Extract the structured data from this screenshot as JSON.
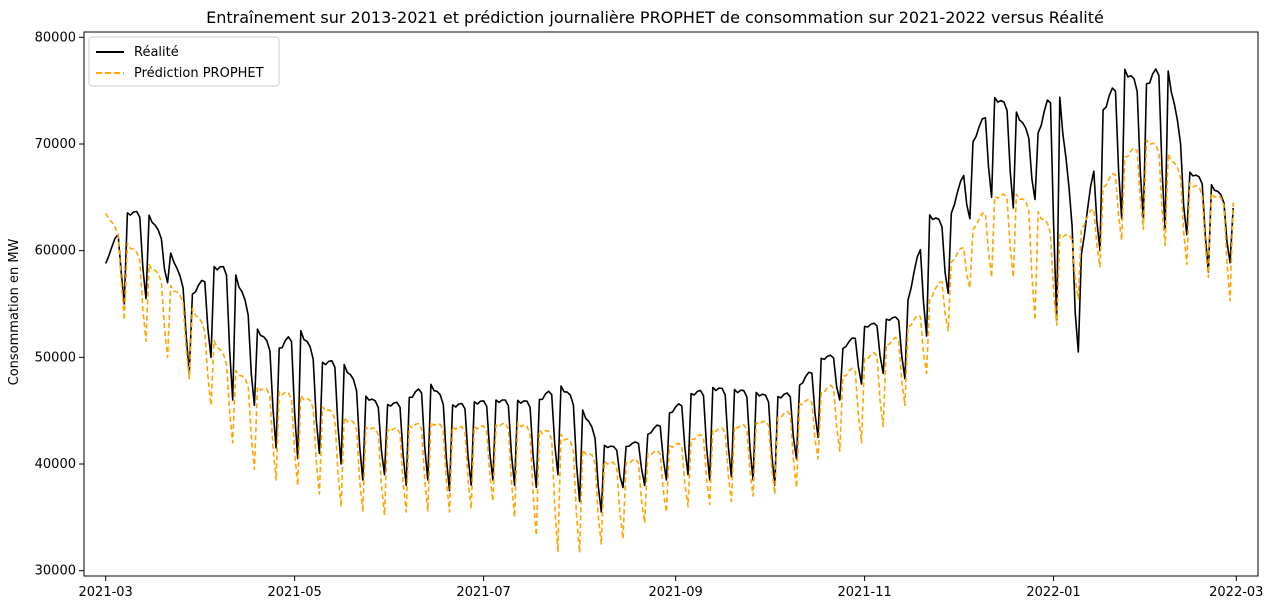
{
  "chart_data": {
    "type": "line",
    "title": "Entraînement sur 2013-2021 et prédiction journalière PROPHET de consommation sur 2021-2022 versus Réalité",
    "xlabel": "",
    "ylabel": "Consommation en MW",
    "x_ticks": [
      "2021-03",
      "2021-05",
      "2021-07",
      "2021-09",
      "2021-11",
      "2022-01",
      "2022-03"
    ],
    "y_ticks": [
      30000,
      40000,
      50000,
      60000,
      70000,
      80000
    ],
    "ylim": [
      29500,
      80500
    ],
    "xlim_days": [
      -7,
      372
    ],
    "x_tick_days": [
      0,
      61,
      122,
      184,
      245,
      306,
      365
    ],
    "legend_position": "top-left",
    "colors": {
      "realite": "#000000",
      "prediction": "#ffa500"
    },
    "series": [
      {
        "name": "Réalité",
        "style": "solid",
        "days": [
          0,
          6,
          13,
          20,
          27,
          34,
          41,
          48,
          55,
          62,
          69,
          76,
          83,
          90,
          97,
          104,
          111,
          118,
          125,
          132,
          139,
          146,
          153,
          160,
          167,
          174,
          181,
          188,
          195,
          202,
          209,
          216,
          223,
          230,
          237,
          244,
          251,
          258,
          265,
          272,
          279,
          286,
          293,
          300,
          307,
          314,
          321,
          328,
          335,
          342,
          349,
          356,
          364
        ],
        "weekday_values": [
          58800,
          63500,
          63800,
          60500,
          55500,
          58500,
          58500,
          53000,
          50500,
          53000,
          49500,
          49800,
          46500,
          45500,
          46000,
          47800,
          45500,
          45800,
          46000,
          46000,
          45800,
          47600,
          45600,
          41800,
          41500,
          42500,
          44500,
          46500,
          47200,
          47000,
          46800,
          46200,
          47000,
          49800,
          50500,
          52800,
          53500,
          54000,
          63500,
          62500,
          69500,
          74500,
          73500,
          70000,
          77200,
          57500,
          72500,
          77300,
          75200,
          78400,
          67500,
          66500,
          64000
        ],
        "weekend_values": [
          57500,
          55000,
          55500,
          57000,
          48500,
          50000,
          46000,
          45500,
          41500,
          40500,
          41000,
          40000,
          38500,
          39000,
          38000,
          38500,
          37500,
          38000,
          38500,
          38000,
          37800,
          39000,
          36500,
          35500,
          37800,
          38000,
          38500,
          39000,
          38500,
          38800,
          38500,
          38000,
          40500,
          42500,
          46000,
          47500,
          48500,
          48000,
          52000,
          56000,
          63000,
          65000,
          64000,
          64800,
          53500,
          50500,
          60000,
          63000,
          63000,
          62000,
          61500,
          58000,
          59000
        ]
      },
      {
        "name": "Prédiction PROPHET",
        "style": "dashed",
        "days": [
          0,
          6,
          13,
          20,
          27,
          34,
          41,
          48,
          55,
          62,
          69,
          76,
          83,
          90,
          97,
          104,
          111,
          118,
          125,
          132,
          139,
          146,
          153,
          160,
          167,
          174,
          181,
          188,
          195,
          202,
          209,
          216,
          223,
          230,
          237,
          244,
          251,
          258,
          265,
          272,
          279,
          286,
          293,
          300,
          307,
          314,
          321,
          328,
          335,
          342,
          349,
          356,
          364
        ],
        "weekday_values": [
          63500,
          61000,
          59000,
          57000,
          55000,
          52000,
          49000,
          47300,
          46800,
          46600,
          45500,
          44500,
          43500,
          43200,
          43500,
          44000,
          43500,
          43500,
          43600,
          44000,
          43200,
          43000,
          41500,
          40300,
          40000,
          40800,
          41600,
          42200,
          43200,
          43500,
          43800,
          44200,
          45500,
          46500,
          48000,
          49700,
          51000,
          52500,
          55000,
          58500,
          61500,
          65000,
          65500,
          64000,
          61500,
          61500,
          65500,
          68500,
          70500,
          69500,
          66500,
          65500,
          64500
        ],
        "weekend_values": [
          62000,
          53500,
          51500,
          50000,
          48000,
          45500,
          42000,
          39500,
          38500,
          38000,
          37200,
          36000,
          35500,
          35200,
          35500,
          35600,
          35500,
          35800,
          36500,
          35000,
          33300,
          31800,
          31700,
          32500,
          33000,
          34500,
          35500,
          36000,
          36200,
          36500,
          37000,
          37200,
          37800,
          40500,
          41200,
          42000,
          43500,
          45500,
          48500,
          52500,
          56500,
          57500,
          57500,
          53500,
          53000,
          55500,
          58500,
          61000,
          62000,
          60500,
          58700,
          57500,
          55000
        ]
      }
    ]
  }
}
